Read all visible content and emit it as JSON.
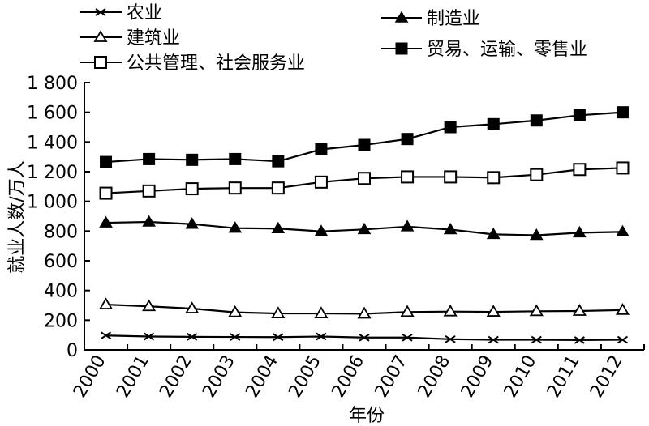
{
  "chart_data": {
    "type": "line",
    "title": "",
    "xlabel": "年份",
    "ylabel": "就业人数/万人",
    "categories": [
      "2000",
      "2001",
      "2002",
      "2003",
      "2004",
      "2005",
      "2006",
      "2007",
      "2008",
      "2009",
      "2010",
      "2011",
      "2012"
    ],
    "ylim": [
      0,
      1800
    ],
    "yticks": [
      0,
      200,
      400,
      600,
      800,
      1000,
      1200,
      1400,
      1600,
      1800
    ],
    "ytick_labels": [
      "0",
      "200",
      "400",
      "600",
      "800",
      "1 000",
      "1 200",
      "1 400",
      "1 600",
      "1 800"
    ],
    "grid": false,
    "legend_position": "top",
    "series": [
      {
        "name": "农业",
        "marker": "x",
        "values": [
          97,
          90,
          88,
          87,
          86,
          90,
          83,
          83,
          72,
          68,
          68,
          66,
          68
        ]
      },
      {
        "name": "制造业",
        "marker": "filled-triangle",
        "values": [
          856,
          862,
          847,
          820,
          817,
          798,
          811,
          830,
          810,
          778,
          772,
          789,
          795
        ]
      },
      {
        "name": "建筑业",
        "marker": "open-triangle",
        "values": [
          305,
          293,
          278,
          253,
          245,
          245,
          243,
          255,
          258,
          256,
          260,
          262,
          268
        ]
      },
      {
        "name": "贸易、运输、零售业",
        "marker": "filled-square",
        "values": [
          1265,
          1285,
          1280,
          1285,
          1270,
          1350,
          1380,
          1420,
          1500,
          1520,
          1545,
          1580,
          1600
        ]
      },
      {
        "name": "公共管理、社会服务业",
        "marker": "open-square",
        "values": [
          1055,
          1070,
          1085,
          1090,
          1090,
          1130,
          1155,
          1165,
          1165,
          1160,
          1180,
          1215,
          1225
        ]
      }
    ]
  }
}
